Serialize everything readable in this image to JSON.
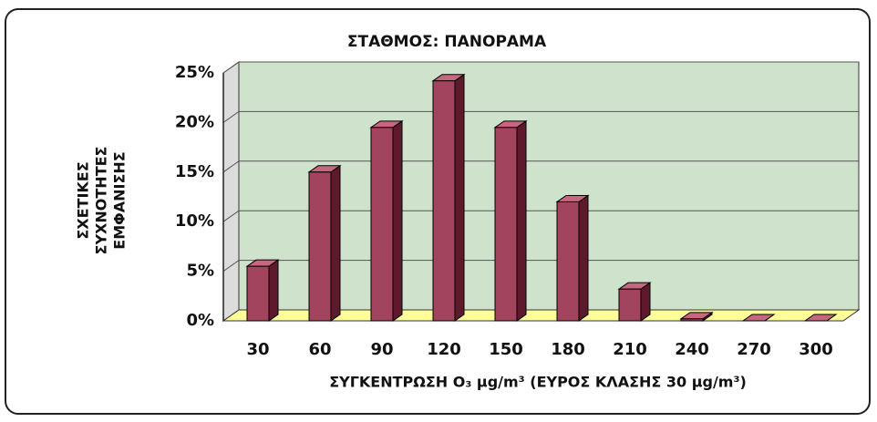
{
  "chart_data": {
    "type": "bar3d",
    "title": "ΣΤΑΘΜΟΣ: ΠΑΝΟΡΑΜΑ",
    "xlabel": "ΣΥΓΚΕΝΤΡΩΣΗ O₃ μg/m³ (ΕΥΡΟΣ ΚΛΑΣΗΣ 30 μg/m³)",
    "ylabel": [
      "ΣΧΕΤΙΚΕΣ",
      "ΣΥΧΝΟΤΗΤΕΣ",
      "ΕΜΦΑΝΙΣΗΣ"
    ],
    "categories": [
      "30",
      "60",
      "90",
      "120",
      "150",
      "180",
      "210",
      "240",
      "270",
      "300"
    ],
    "values": [
      5.5,
      15,
      19.5,
      24.2,
      19.5,
      12,
      3.2,
      0.2,
      0,
      0
    ],
    "color": "#a3445e",
    "ylim": [
      0,
      25
    ],
    "yticks": [
      {
        "value": 0,
        "label": "0%"
      },
      {
        "value": 5,
        "label": "5%"
      },
      {
        "value": 10,
        "label": "10%"
      },
      {
        "value": 15,
        "label": "15%"
      },
      {
        "value": 20,
        "label": "20%"
      },
      {
        "value": 25,
        "label": "25%"
      }
    ],
    "grid": true
  }
}
